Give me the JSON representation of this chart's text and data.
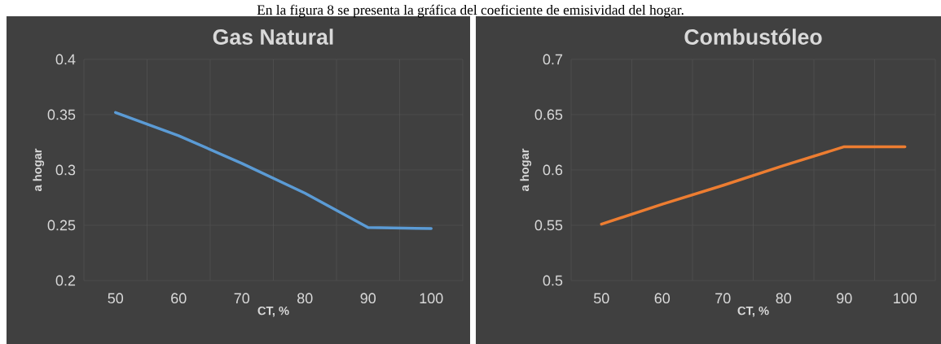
{
  "chart_data": [
    {
      "type": "line",
      "title": "Gas Natural",
      "xlabel": "CT, %",
      "ylabel": "a hogar",
      "annotations": [
        "En la figura 8 se presenta la gráfica del coeficiente de emisividad del hogar."
      ],
      "categories": [
        "50",
        "60",
        "70",
        "80",
        "90",
        "100"
      ],
      "series": [
        {
          "color": "#5b9bd5",
          "values": [
            0.352,
            0.331,
            0.306,
            0.279,
            0.248,
            0.247
          ]
        }
      ],
      "ylim": [
        0.2,
        0.4
      ],
      "yticks": [
        0.2,
        0.25,
        0.3,
        0.35,
        0.4
      ],
      "grid": true
    },
    {
      "type": "line",
      "title": "Combustóleo",
      "xlabel": "CT, %",
      "ylabel": "a hogar",
      "categories": [
        "50",
        "60",
        "70",
        "80",
        "90",
        "100"
      ],
      "series": [
        {
          "color": "#ed7d31",
          "values": [
            0.551,
            0.569,
            0.586,
            0.604,
            0.621,
            0.621
          ]
        }
      ],
      "ylim": [
        0.5,
        0.7
      ],
      "yticks": [
        0.5,
        0.55,
        0.6,
        0.65,
        0.7
      ],
      "grid": true
    }
  ]
}
